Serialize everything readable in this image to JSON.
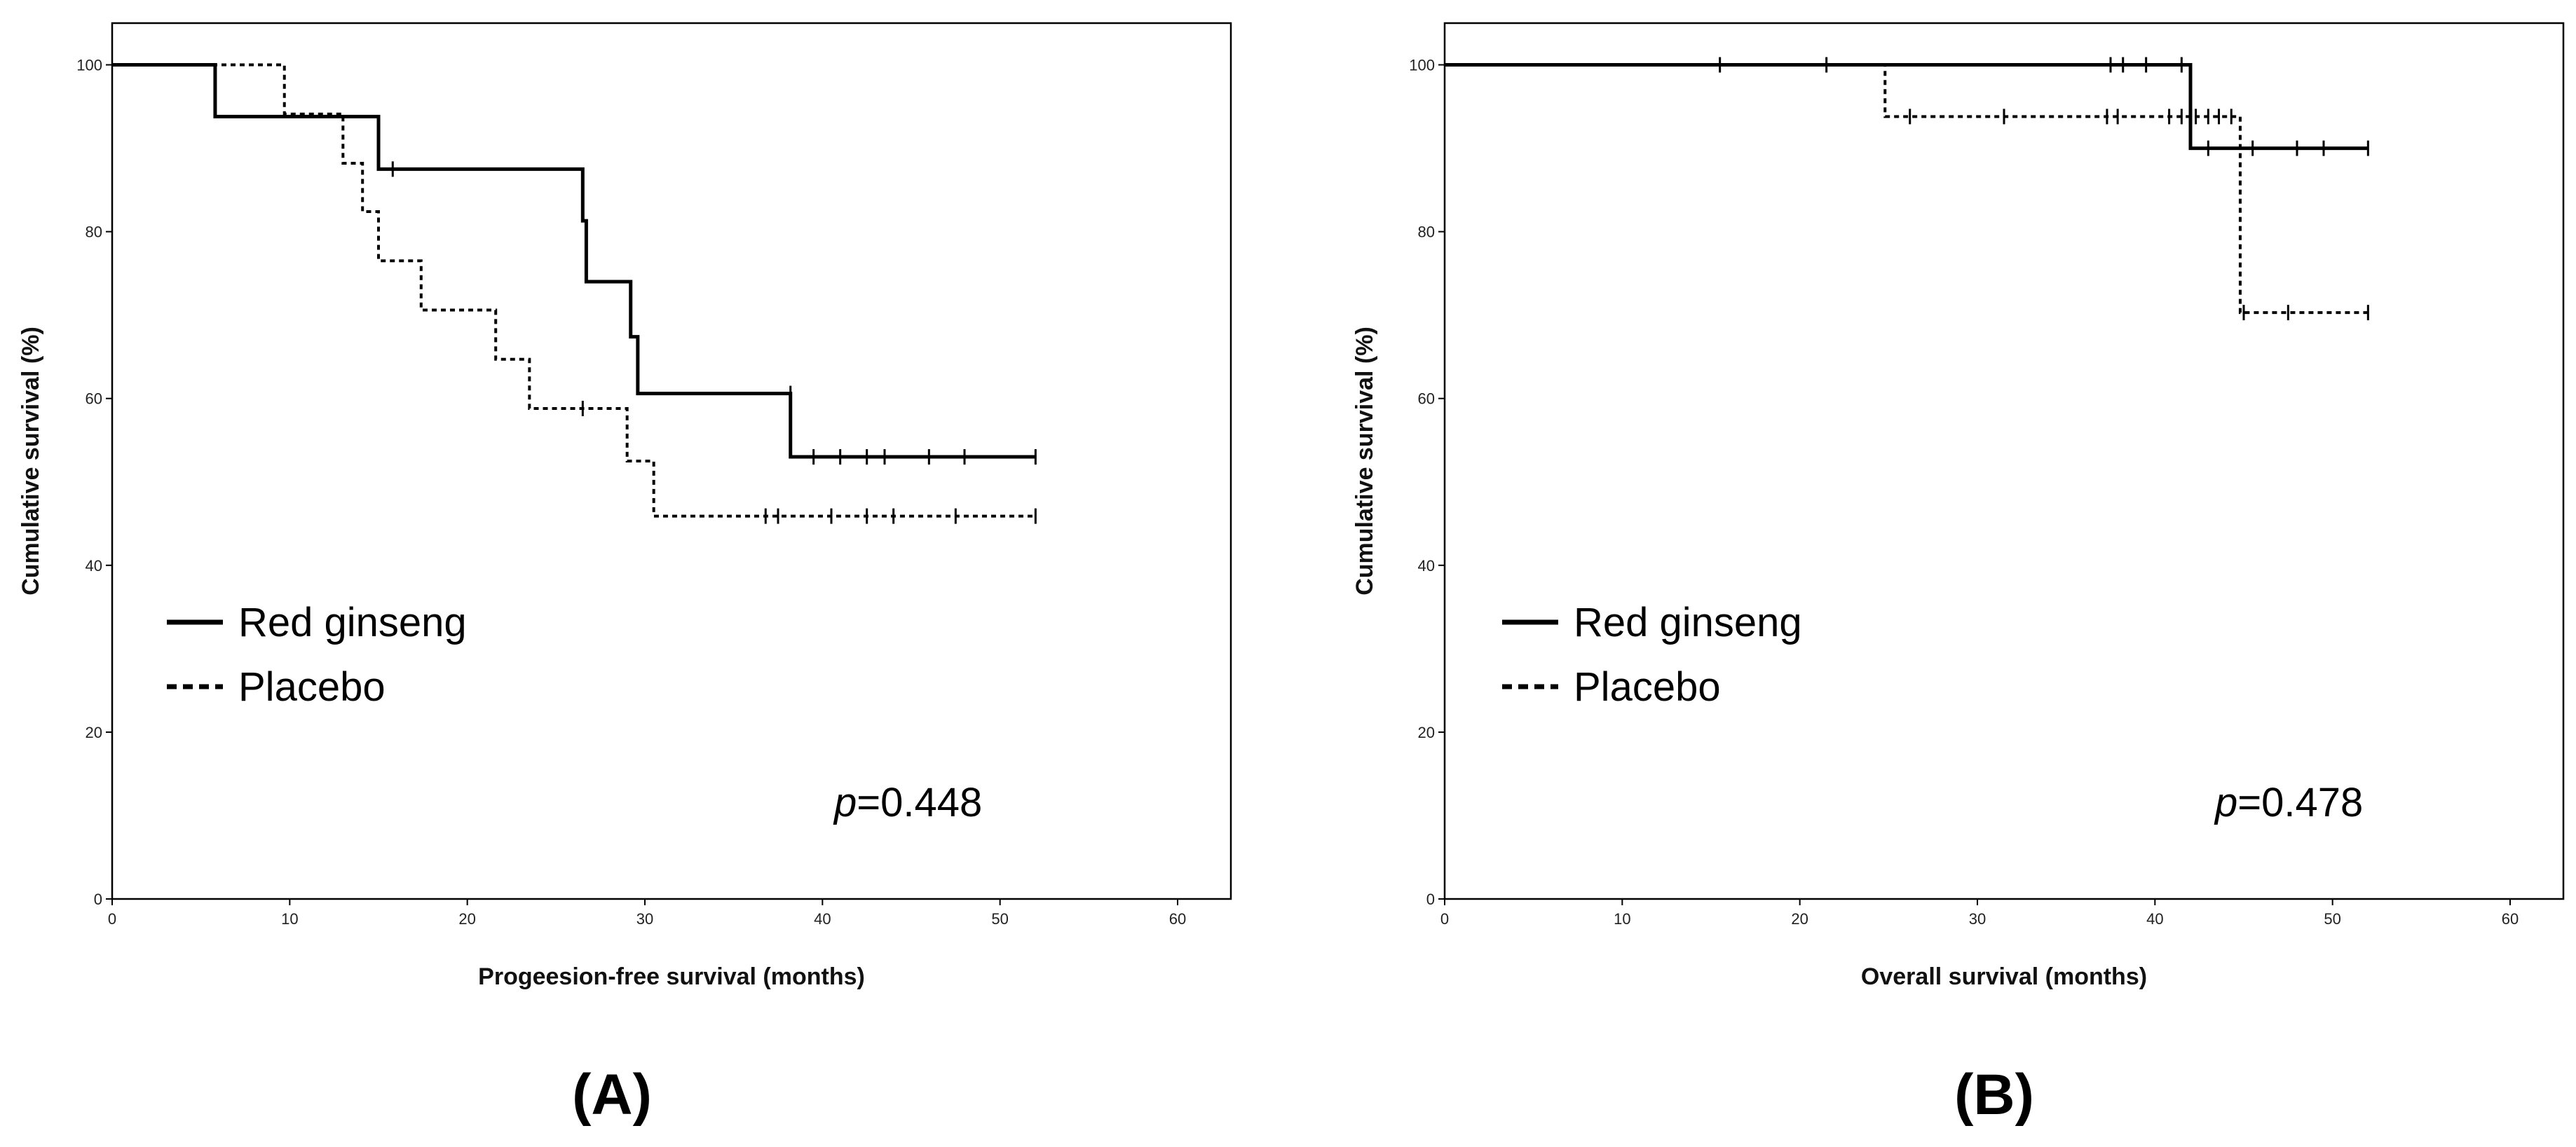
{
  "chart_data": [
    {
      "type": "line",
      "subtype": "kaplan-meier",
      "panel_label": "(A)",
      "xlabel": "Progeesion-free survival (months)",
      "ylabel": "Cumulative survival (%)",
      "xlim": [
        0,
        63
      ],
      "ylim": [
        0,
        105
      ],
      "xticks": [
        "0",
        "10",
        "20",
        "30",
        "40",
        "50",
        "60"
      ],
      "yticks": [
        "0",
        "20",
        "40",
        "60",
        "80",
        "100"
      ],
      "grid": false,
      "legend_position": "left",
      "p_value": {
        "prefix": "p",
        "value": "=0.448"
      },
      "series": [
        {
          "name": "Red ginseng",
          "style": "solid",
          "steps": [
            [
              0,
              100
            ],
            [
              5.8,
              93.8
            ],
            [
              15,
              87.5
            ],
            [
              26.5,
              81.3
            ],
            [
              26.7,
              74
            ],
            [
              29.2,
              67.4
            ],
            [
              29.6,
              60.6
            ],
            [
              38.2,
              53
            ]
          ],
          "end_x": 52,
          "censored": [
            [
              15.8,
              87.5
            ],
            [
              38.2,
              60.6
            ],
            [
              39.5,
              53
            ],
            [
              41,
              53
            ],
            [
              42.5,
              53
            ],
            [
              43.5,
              53
            ],
            [
              46,
              53
            ],
            [
              48,
              53
            ],
            [
              52,
              53
            ]
          ]
        },
        {
          "name": "Placebo",
          "style": "dashed",
          "steps": [
            [
              0,
              100
            ],
            [
              9.7,
              94.1
            ],
            [
              13,
              88.2
            ],
            [
              14.1,
              82.4
            ],
            [
              15,
              76.5
            ],
            [
              17.4,
              70.6
            ],
            [
              21.6,
              64.7
            ],
            [
              23.5,
              58.8
            ],
            [
              29,
              52.5
            ],
            [
              30.5,
              45.9
            ]
          ],
          "end_x": 52,
          "censored": [
            [
              26.5,
              58.8
            ],
            [
              36.8,
              45.9
            ],
            [
              37.5,
              45.9
            ],
            [
              40.5,
              45.9
            ],
            [
              42.5,
              45.9
            ],
            [
              44,
              45.9
            ],
            [
              47.5,
              45.9
            ],
            [
              52,
              45.9
            ]
          ]
        }
      ]
    },
    {
      "type": "line",
      "subtype": "kaplan-meier",
      "panel_label": "(B)",
      "xlabel": "Overall survival (months)",
      "ylabel": "Cumulative survival (%)",
      "xlim": [
        0,
        63
      ],
      "ylim": [
        0,
        105
      ],
      "xticks": [
        "0",
        "10",
        "20",
        "30",
        "40",
        "50",
        "60"
      ],
      "yticks": [
        "0",
        "20",
        "40",
        "60",
        "80",
        "100"
      ],
      "grid": false,
      "legend_position": "left",
      "p_value": {
        "prefix": "p",
        "value": "=0.478"
      },
      "series": [
        {
          "name": "Red ginseng",
          "style": "solid",
          "steps": [
            [
              0,
              100
            ],
            [
              42,
              90
            ]
          ],
          "end_x": 52,
          "censored": [
            [
              15.5,
              100
            ],
            [
              21.5,
              100
            ],
            [
              37.5,
              100
            ],
            [
              38.2,
              100
            ],
            [
              39.5,
              100
            ],
            [
              41.5,
              100
            ],
            [
              43,
              90
            ],
            [
              45.5,
              90
            ],
            [
              48,
              90
            ],
            [
              49.5,
              90
            ],
            [
              52,
              90
            ]
          ]
        },
        {
          "name": "Placebo",
          "style": "dashed",
          "steps": [
            [
              0,
              100
            ],
            [
              24.8,
              93.8
            ],
            [
              44.8,
              70.3
            ]
          ],
          "end_x": 52,
          "censored": [
            [
              26.2,
              93.8
            ],
            [
              31.5,
              93.8
            ],
            [
              37.3,
              93.8
            ],
            [
              37.9,
              93.8
            ],
            [
              40.8,
              93.8
            ],
            [
              41.5,
              93.8
            ],
            [
              42.3,
              93.8
            ],
            [
              43,
              93.8
            ],
            [
              43.6,
              93.8
            ],
            [
              44.3,
              93.8
            ],
            [
              45,
              70.3
            ],
            [
              47.5,
              70.3
            ],
            [
              52,
              70.3
            ]
          ]
        }
      ]
    }
  ]
}
